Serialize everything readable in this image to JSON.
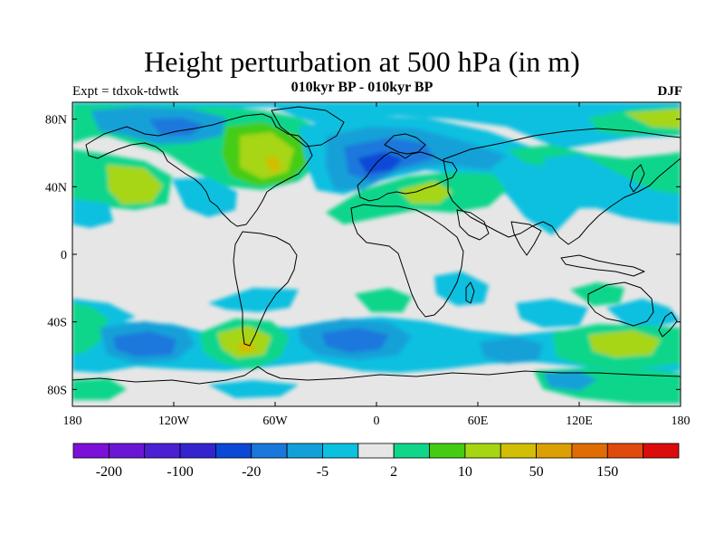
{
  "title": "Height perturbation at 500 hPa (in m)",
  "subtitle": "010kyr BP - 010kyr BP",
  "left_label": "Expt = tdxok-tdwtk",
  "right_label": "DJF",
  "lat_ticks": [
    {
      "value": 80,
      "label": "80N"
    },
    {
      "value": 40,
      "label": "40N"
    },
    {
      "value": 0,
      "label": "0"
    },
    {
      "value": -40,
      "label": "40S"
    },
    {
      "value": -80,
      "label": "80S"
    }
  ],
  "lon_ticks": [
    {
      "value": -180,
      "label": "180"
    },
    {
      "value": -120,
      "label": "120W"
    },
    {
      "value": -60,
      "label": "60W"
    },
    {
      "value": 0,
      "label": "0"
    },
    {
      "value": 60,
      "label": "60E"
    },
    {
      "value": 120,
      "label": "120E"
    },
    {
      "value": 180,
      "label": "180"
    }
  ],
  "colorbar": {
    "colors": [
      "#7d10d8",
      "#6a16d4",
      "#4c1ed4",
      "#3424d0",
      "#0a48d6",
      "#1a78dc",
      "#12a0d8",
      "#0cc0e0",
      "#e6e6e6",
      "#10d68a",
      "#44cc12",
      "#a6d612",
      "#d2be06",
      "#dca004",
      "#e06c04",
      "#e04a0c",
      "#dc0c0c"
    ],
    "labels": [
      {
        "boundary": 1,
        "text": "-200"
      },
      {
        "boundary": 3,
        "text": "-100"
      },
      {
        "boundary": 5,
        "text": "-20"
      },
      {
        "boundary": 7,
        "text": "-5"
      },
      {
        "boundary": 9,
        "text": "2"
      },
      {
        "boundary": 11,
        "text": "10"
      },
      {
        "boundary": 13,
        "text": "50"
      },
      {
        "boundary": 15,
        "text": "150"
      }
    ]
  }
}
